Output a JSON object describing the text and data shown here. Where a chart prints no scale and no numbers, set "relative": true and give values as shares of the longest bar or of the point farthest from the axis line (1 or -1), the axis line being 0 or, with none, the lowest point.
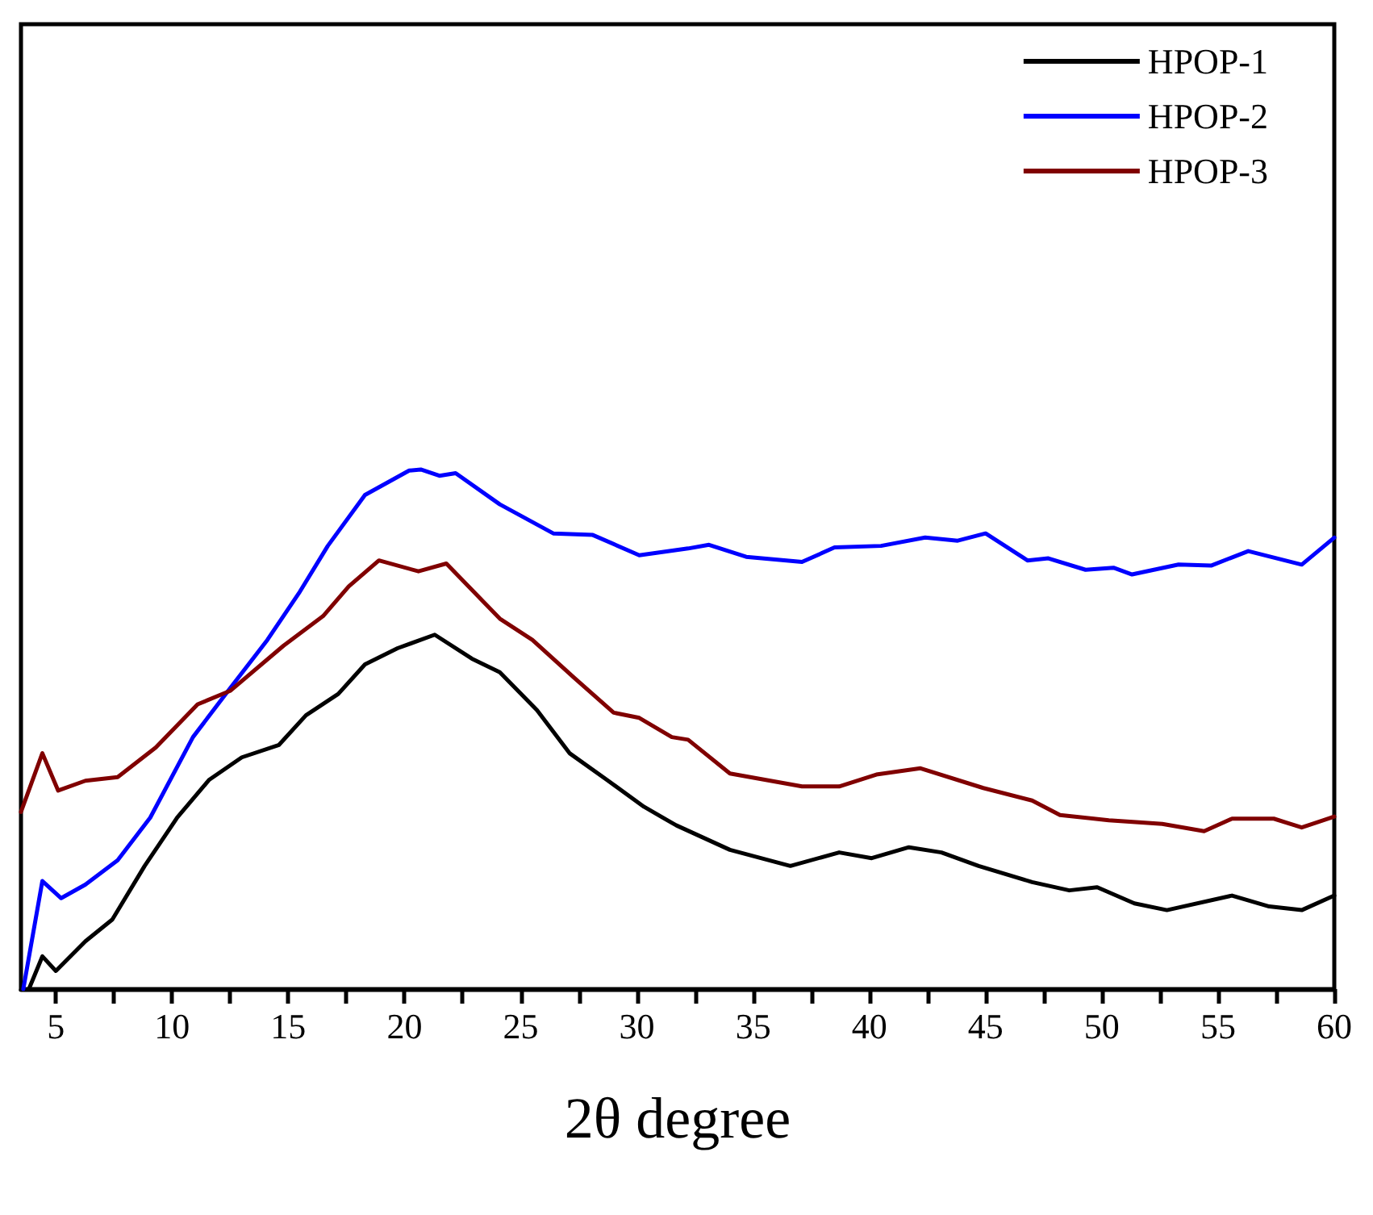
{
  "chart_data": {
    "type": "line",
    "relative": true,
    "xlabel": "2θ degree",
    "xlim": [
      3.5,
      60
    ],
    "xticks": [
      5,
      {
        "value": 7.5,
        "label": null
      },
      10,
      {
        "value": 12.5,
        "label": null
      },
      15,
      {
        "value": 17.5,
        "label": null
      },
      20,
      {
        "value": 22.5,
        "label": null
      },
      25,
      {
        "value": 27.5,
        "label": null
      },
      30,
      {
        "value": 32.5,
        "label": null
      },
      35,
      {
        "value": 37.5,
        "label": null
      },
      40,
      {
        "value": 42.5,
        "label": null
      },
      45,
      {
        "value": 47.5,
        "label": null
      },
      50,
      {
        "value": 52.5,
        "label": null
      },
      55,
      {
        "value": 57.5,
        "label": null
      },
      60
    ],
    "legend": "top right",
    "marker": "none",
    "line_style": "solid",
    "series": [
      {
        "name": "HPOP-1",
        "color": "#000000",
        "x": [
          3.84,
          4.42,
          5.0,
          6.27,
          7.43,
          8.82,
          10.22,
          11.6,
          13.0,
          14.6,
          15.76,
          17.15,
          18.3,
          19.7,
          21.3,
          22.9,
          24.1,
          25.7,
          27.1,
          28.7,
          30.3,
          31.5,
          31.7,
          34.0,
          36.6,
          38.7,
          40.1,
          41.7,
          43.1,
          44.7,
          47.0,
          48.6,
          49.8,
          51.4,
          52.8,
          55.6,
          57.2,
          58.6,
          60
        ],
        "values": [
          0,
          0.063,
          0.035,
          0.092,
          0.134,
          0.237,
          0.33,
          0.403,
          0.446,
          0.47,
          0.527,
          0.568,
          0.625,
          0.656,
          0.682,
          0.636,
          0.61,
          0.537,
          0.454,
          0.403,
          0.351,
          0.32,
          0.315,
          0.268,
          0.237,
          0.263,
          0.252,
          0.273,
          0.263,
          0.237,
          0.206,
          0.19,
          0.196,
          0.165,
          0.152,
          0.18,
          0.159,
          0.152,
          0.18
        ]
      },
      {
        "name": "HPOP-2",
        "color": "#0000ff",
        "x": [
          3.6,
          4.42,
          5.23,
          6.27,
          7.66,
          9.06,
          10.9,
          12.5,
          14.1,
          15.5,
          16.7,
          18.3,
          20.2,
          20.7,
          21.5,
          22.2,
          24.1,
          26.4,
          28.1,
          30.1,
          32.2,
          33.1,
          34.7,
          37.1,
          38.5,
          40.5,
          42.4,
          43.8,
          45.0,
          46.8,
          47.7,
          49.3,
          50.5,
          51.3,
          53.3,
          54.7,
          56.3,
          58.6,
          60
        ],
        "values": [
          0,
          0.208,
          0.175,
          0.201,
          0.248,
          0.33,
          0.485,
          0.579,
          0.672,
          0.765,
          0.853,
          0.951,
          0.998,
          1,
          0.988,
          0.993,
          0.933,
          0.877,
          0.874,
          0.835,
          0.848,
          0.855,
          0.832,
          0.822,
          0.85,
          0.853,
          0.869,
          0.863,
          0.877,
          0.825,
          0.829,
          0.807,
          0.811,
          0.798,
          0.817,
          0.815,
          0.843,
          0.817,
          0.869
        ]
      },
      {
        "name": "HPOP-3",
        "color": "#800000",
        "x": [
          3.5,
          4.42,
          5.1,
          6.27,
          7.66,
          9.3,
          11.1,
          12.5,
          14.8,
          16.5,
          17.6,
          18.9,
          20.6,
          21.8,
          24.1,
          25.5,
          27.3,
          29.0,
          30.1,
          31.5,
          32.2,
          34.0,
          37.1,
          38.7,
          40.3,
          42.2,
          44.9,
          47.0,
          48.2,
          50.3,
          52.6,
          54.4,
          55.6,
          57.4,
          58.6,
          60
        ],
        "values": [
          0.341,
          0.454,
          0.382,
          0.401,
          0.408,
          0.465,
          0.548,
          0.574,
          0.661,
          0.718,
          0.775,
          0.825,
          0.804,
          0.819,
          0.713,
          0.672,
          0.599,
          0.532,
          0.522,
          0.485,
          0.48,
          0.415,
          0.39,
          0.39,
          0.413,
          0.425,
          0.387,
          0.363,
          0.335,
          0.325,
          0.318,
          0.304,
          0.328,
          0.328,
          0.311,
          0.332
        ]
      }
    ]
  }
}
